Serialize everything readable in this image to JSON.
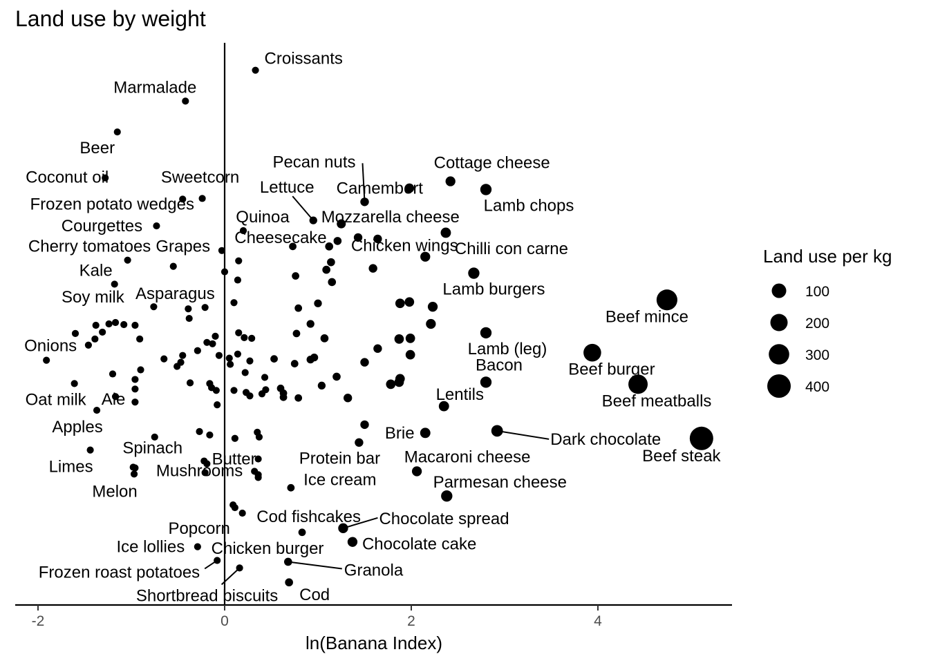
{
  "chart_data": {
    "type": "scatter",
    "title": "Land use by weight",
    "xlabel": "ln(Banana Index)",
    "xlim": [
      -2.25,
      5.45
    ],
    "x_ticks": [
      -2,
      0,
      2,
      4
    ],
    "x_tick_labels": [
      "-2",
      "0",
      "2",
      "4"
    ],
    "vline_x": 0,
    "legend": {
      "title": "Land use per kg",
      "placement": "right",
      "values": [
        100,
        200,
        300,
        400
      ],
      "labels": [
        "100",
        "200",
        "300",
        "400"
      ]
    },
    "labeled_points": [
      {
        "label": "Croissants",
        "x": 0.33,
        "y": 92.0,
        "size": 12
      },
      {
        "label": "Marmalade",
        "x": -0.42,
        "y": 87.5,
        "size": 12
      },
      {
        "label": "Beer",
        "x": -1.15,
        "y": 83.0,
        "size": 12
      },
      {
        "label": "Coconut oil",
        "x": -1.28,
        "y": 76.3,
        "size": 12
      },
      {
        "label": "Sweetcorn",
        "x": -0.24,
        "y": 73.3,
        "size": 12
      },
      {
        "label": "Frozen potato wedges",
        "x": -0.45,
        "y": 73.2,
        "size": 12
      },
      {
        "label": "Pecan nuts",
        "x": 1.5,
        "y": 72.8,
        "size": 25
      },
      {
        "label": "Camembert",
        "x": 1.98,
        "y": 74.8,
        "size": 35
      },
      {
        "label": "Cottage cheese",
        "x": 2.42,
        "y": 75.8,
        "size": 40
      },
      {
        "label": "Lamb chops",
        "x": 2.8,
        "y": 74.6,
        "size": 60
      },
      {
        "label": "Lettuce",
        "x": 0.95,
        "y": 70.1,
        "size": 18
      },
      {
        "label": "Mozzarella cheese",
        "x": 1.25,
        "y": 69.6,
        "size": 30
      },
      {
        "label": "Quinoa",
        "x": 0.2,
        "y": 68.6,
        "size": 12
      },
      {
        "label": "Courgettes",
        "x": -0.73,
        "y": 69.3,
        "size": 12
      },
      {
        "label": "Chilli con carne",
        "x": 2.37,
        "y": 68.3,
        "size": 45
      },
      {
        "label": "Cheesecake",
        "x": -0.03,
        "y": 65.7,
        "size": 12
      },
      {
        "label": "Chicken wings",
        "x": 2.15,
        "y": 64.8,
        "size": 40
      },
      {
        "label": "Cherry tomatoes",
        "x": -1.04,
        "y": 64.3,
        "size": 12
      },
      {
        "label": "Grapes",
        "x": -0.55,
        "y": 63.4,
        "size": 12
      },
      {
        "label": "Kale",
        "x": -1.18,
        "y": 60.8,
        "size": 12
      },
      {
        "label": "Lamb burgers",
        "x": 2.67,
        "y": 62.4,
        "size": 60
      },
      {
        "label": "Soy milk",
        "x": -0.76,
        "y": 57.5,
        "size": 12
      },
      {
        "label": "Asparagus",
        "x": -0.39,
        "y": 57.2,
        "size": 12
      },
      {
        "label": "Beef mince",
        "x": 4.74,
        "y": 58.5,
        "size": 300
      },
      {
        "label": "Lamb (leg)",
        "x": 2.8,
        "y": 53.7,
        "size": 60
      },
      {
        "label": "Onions",
        "x": -1.91,
        "y": 49.7,
        "size": 12
      },
      {
        "label": "Beef burger",
        "x": 3.94,
        "y": 50.8,
        "size": 200
      },
      {
        "label": "Oat milk",
        "x": -1.61,
        "y": 46.3,
        "size": 12
      },
      {
        "label": "Bacon",
        "x": 2.8,
        "y": 46.5,
        "size": 60
      },
      {
        "label": "Ale",
        "x": -1.17,
        "y": 44.4,
        "size": 12
      },
      {
        "label": "Beef meatballs",
        "x": 4.43,
        "y": 46.2,
        "size": 250
      },
      {
        "label": "Lentils",
        "x": 2.35,
        "y": 43.0,
        "size": 45
      },
      {
        "label": "Apples",
        "x": -1.37,
        "y": 42.4,
        "size": 12
      },
      {
        "label": "Brie",
        "x": 2.15,
        "y": 39.1,
        "size": 45
      },
      {
        "label": "Dark chocolate",
        "x": 2.92,
        "y": 39.4,
        "size": 65
      },
      {
        "label": "Beef steak",
        "x": 5.11,
        "y": 38.3,
        "size": 400
      },
      {
        "label": "Limes",
        "x": -1.44,
        "y": 36.6,
        "size": 12
      },
      {
        "label": "Spinach",
        "x": -0.98,
        "y": 34.1,
        "size": 12
      },
      {
        "label": "Butter",
        "x": 0.36,
        "y": 35.3,
        "size": 12
      },
      {
        "label": "Protein bar",
        "x": 1.44,
        "y": 37.7,
        "size": 25
      },
      {
        "label": "Macaroni cheese",
        "x": 2.06,
        "y": 33.5,
        "size": 40
      },
      {
        "label": "Melon",
        "x": -0.97,
        "y": 33.1,
        "size": 12
      },
      {
        "label": "Mushrooms",
        "x": 0.36,
        "y": 32.6,
        "size": 12
      },
      {
        "label": "Ice cream",
        "x": 0.71,
        "y": 31.1,
        "size": 15
      },
      {
        "label": "Parmesan cheese",
        "x": 2.38,
        "y": 29.9,
        "size": 60
      },
      {
        "label": "Cod fishcakes",
        "x": 0.19,
        "y": 27.4,
        "size": 12
      },
      {
        "label": "Popcorn",
        "x": 0.09,
        "y": 28.6,
        "size": 12
      },
      {
        "label": "Chocolate spread",
        "x": 1.27,
        "y": 25.2,
        "size": 40
      },
      {
        "label": "Chocolate cake",
        "x": 1.37,
        "y": 23.2,
        "size": 40
      },
      {
        "label": "Ice lollies",
        "x": -0.29,
        "y": 22.5,
        "size": 12
      },
      {
        "label": "Chicken burger",
        "x": 0.83,
        "y": 24.6,
        "size": 15
      },
      {
        "label": "Frozen roast potatoes",
        "x": -0.08,
        "y": 20.5,
        "size": 12
      },
      {
        "label": "Granola",
        "x": 0.68,
        "y": 20.3,
        "size": 20
      },
      {
        "label": "Shortbread biscuits",
        "x": 0.16,
        "y": 19.4,
        "size": 12
      },
      {
        "label": "Cod",
        "x": 0.69,
        "y": 17.3,
        "size": 20
      }
    ],
    "unlabeled_points": [
      {
        "x": 1.12,
        "y": 66.3,
        "size": 20
      },
      {
        "x": 1.21,
        "y": 67.1,
        "size": 20
      },
      {
        "x": 1.43,
        "y": 67.6,
        "size": 25
      },
      {
        "x": 1.64,
        "y": 67.4,
        "size": 25
      },
      {
        "x": 0.73,
        "y": 66.3,
        "size": 15
      },
      {
        "x": 0.15,
        "y": 64.2,
        "size": 12
      },
      {
        "x": 1.14,
        "y": 64.0,
        "size": 20
      },
      {
        "x": 1.59,
        "y": 63.1,
        "size": 25
      },
      {
        "x": 1.09,
        "y": 62.9,
        "size": 20
      },
      {
        "x": 0.76,
        "y": 62.0,
        "size": 15
      },
      {
        "x": 0.0,
        "y": 62.6,
        "size": 12
      },
      {
        "x": 0.14,
        "y": 61.4,
        "size": 12
      },
      {
        "x": 1.15,
        "y": 61.1,
        "size": 20
      },
      {
        "x": 1.88,
        "y": 58.0,
        "size": 35
      },
      {
        "x": 1.98,
        "y": 58.2,
        "size": 35
      },
      {
        "x": 2.23,
        "y": 57.5,
        "size": 40
      },
      {
        "x": 1.0,
        "y": 58.0,
        "size": 18
      },
      {
        "x": 0.79,
        "y": 57.3,
        "size": 15
      },
      {
        "x": 0.1,
        "y": 58.1,
        "size": 12
      },
      {
        "x": -0.21,
        "y": 57.4,
        "size": 12
      },
      {
        "x": -0.38,
        "y": 55.8,
        "size": 12
      },
      {
        "x": 0.92,
        "y": 55.0,
        "size": 18
      },
      {
        "x": 2.21,
        "y": 55.0,
        "size": 40
      },
      {
        "x": -1.38,
        "y": 54.8,
        "size": 12
      },
      {
        "x": -1.24,
        "y": 55.0,
        "size": 12
      },
      {
        "x": -1.08,
        "y": 54.9,
        "size": 12
      },
      {
        "x": -0.96,
        "y": 54.8,
        "size": 12
      },
      {
        "x": -1.17,
        "y": 55.2,
        "size": 12
      },
      {
        "x": -1.31,
        "y": 53.8,
        "size": 12
      },
      {
        "x": -1.6,
        "y": 53.6,
        "size": 12
      },
      {
        "x": -1.39,
        "y": 52.8,
        "size": 12
      },
      {
        "x": -0.91,
        "y": 52.8,
        "size": 12
      },
      {
        "x": 0.77,
        "y": 53.6,
        "size": 15
      },
      {
        "x": 1.07,
        "y": 52.9,
        "size": 20
      },
      {
        "x": 0.15,
        "y": 53.7,
        "size": 12
      },
      {
        "x": 0.21,
        "y": 53.0,
        "size": 12
      },
      {
        "x": 0.29,
        "y": 52.9,
        "size": 12
      },
      {
        "x": -0.1,
        "y": 53.2,
        "size": 12
      },
      {
        "x": -0.19,
        "y": 52.3,
        "size": 12
      },
      {
        "x": -0.13,
        "y": 52.1,
        "size": 12
      },
      {
        "x": 1.87,
        "y": 52.8,
        "size": 35
      },
      {
        "x": 1.99,
        "y": 52.9,
        "size": 35
      },
      {
        "x": 1.64,
        "y": 51.4,
        "size": 25
      },
      {
        "x": 1.99,
        "y": 50.5,
        "size": 35
      },
      {
        "x": -1.46,
        "y": 51.9,
        "size": 12
      },
      {
        "x": -0.29,
        "y": 51.1,
        "size": 12
      },
      {
        "x": -0.45,
        "y": 50.4,
        "size": 12
      },
      {
        "x": -0.06,
        "y": 50.4,
        "size": 12
      },
      {
        "x": 0.05,
        "y": 50.0,
        "size": 12
      },
      {
        "x": 0.14,
        "y": 50.6,
        "size": 12
      },
      {
        "x": 0.27,
        "y": 49.6,
        "size": 12
      },
      {
        "x": 0.53,
        "y": 49.9,
        "size": 15
      },
      {
        "x": 0.92,
        "y": 49.8,
        "size": 18
      },
      {
        "x": 0.96,
        "y": 50.1,
        "size": 18
      },
      {
        "x": 0.75,
        "y": 49.2,
        "size": 15
      },
      {
        "x": 1.5,
        "y": 49.4,
        "size": 25
      },
      {
        "x": -0.65,
        "y": 49.9,
        "size": 12
      },
      {
        "x": -0.47,
        "y": 49.4,
        "size": 12
      },
      {
        "x": -0.51,
        "y": 48.8,
        "size": 12
      },
      {
        "x": -0.9,
        "y": 48.3,
        "size": 12
      },
      {
        "x": 0.06,
        "y": 49.1,
        "size": 12
      },
      {
        "x": 0.22,
        "y": 47.9,
        "size": 12
      },
      {
        "x": 0.43,
        "y": 47.2,
        "size": 12
      },
      {
        "x": 1.2,
        "y": 47.3,
        "size": 20
      },
      {
        "x": 1.88,
        "y": 47.0,
        "size": 35
      },
      {
        "x": 1.87,
        "y": 46.5,
        "size": 35
      },
      {
        "x": -1.2,
        "y": 47.7,
        "size": 12
      },
      {
        "x": -0.96,
        "y": 46.9,
        "size": 12
      },
      {
        "x": -0.37,
        "y": 46.4,
        "size": 12
      },
      {
        "x": -0.16,
        "y": 46.3,
        "size": 12
      },
      {
        "x": 0.1,
        "y": 45.3,
        "size": 12
      },
      {
        "x": 0.23,
        "y": 45.0,
        "size": 12
      },
      {
        "x": 0.27,
        "y": 44.5,
        "size": 12
      },
      {
        "x": 0.4,
        "y": 44.8,
        "size": 12
      },
      {
        "x": 0.44,
        "y": 45.4,
        "size": 12
      },
      {
        "x": 0.6,
        "y": 45.6,
        "size": 15
      },
      {
        "x": 0.63,
        "y": 44.9,
        "size": 15
      },
      {
        "x": 0.63,
        "y": 44.3,
        "size": 15
      },
      {
        "x": 0.79,
        "y": 44.2,
        "size": 15
      },
      {
        "x": 1.04,
        "y": 46.0,
        "size": 18
      },
      {
        "x": 1.78,
        "y": 46.2,
        "size": 35
      },
      {
        "x": 1.32,
        "y": 44.2,
        "size": 25
      },
      {
        "x": -0.96,
        "y": 45.5,
        "size": 12
      },
      {
        "x": -0.96,
        "y": 43.6,
        "size": 12
      },
      {
        "x": -0.14,
        "y": 45.7,
        "size": 12
      },
      {
        "x": -0.09,
        "y": 45.3,
        "size": 12
      },
      {
        "x": -0.08,
        "y": 43.2,
        "size": 12
      },
      {
        "x": 1.5,
        "y": 40.3,
        "size": 25
      },
      {
        "x": -0.75,
        "y": 38.5,
        "size": 12
      },
      {
        "x": -0.27,
        "y": 39.3,
        "size": 12
      },
      {
        "x": -0.16,
        "y": 38.8,
        "size": 12
      },
      {
        "x": 0.11,
        "y": 38.3,
        "size": 12
      },
      {
        "x": 0.35,
        "y": 39.2,
        "size": 12
      },
      {
        "x": 0.37,
        "y": 38.5,
        "size": 12
      },
      {
        "x": -0.22,
        "y": 35.0,
        "size": 12
      },
      {
        "x": -0.19,
        "y": 34.6,
        "size": 12
      },
      {
        "x": -0.21,
        "y": 33.3,
        "size": 12
      },
      {
        "x": -0.96,
        "y": 34.0,
        "size": 12
      },
      {
        "x": 0.32,
        "y": 33.5,
        "size": 12
      },
      {
        "x": 0.36,
        "y": 33.0,
        "size": 12
      },
      {
        "x": 0.11,
        "y": 28.2,
        "size": 12
      }
    ]
  }
}
